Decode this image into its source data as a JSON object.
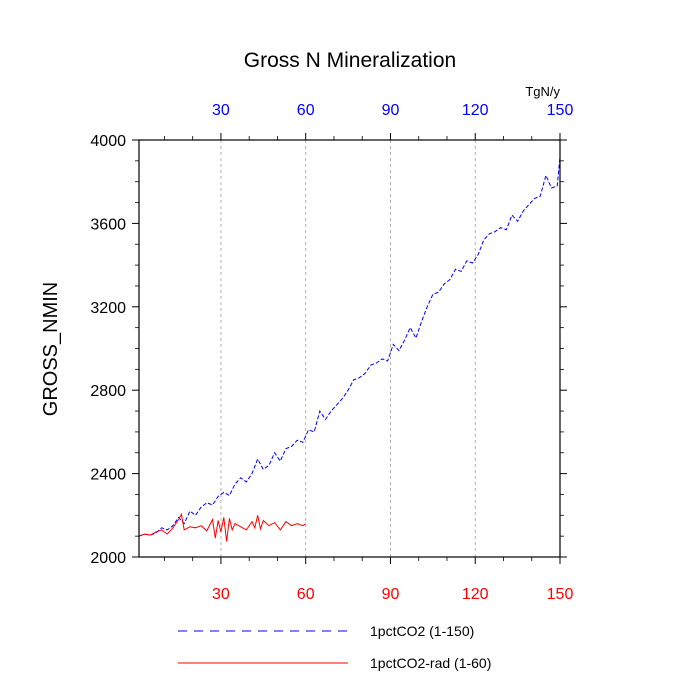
{
  "chart_data": {
    "type": "line",
    "title": "Gross N Mineralization",
    "ylabel": "GROSS_NMIN",
    "units": "TgN/y",
    "xlim": [
      1,
      150
    ],
    "ylim": [
      2000,
      4000
    ],
    "x_ticks": [
      30,
      60,
      90,
      120,
      150
    ],
    "x_tick_labels": [
      "30",
      "60",
      "90",
      "120",
      "150"
    ],
    "y_ticks": [
      2000,
      2400,
      2800,
      3200,
      3600,
      4000
    ],
    "y_tick_labels": [
      "2000",
      "2400",
      "2800",
      "3200",
      "3600",
      "4000"
    ],
    "top_axis_color": "#0000ff",
    "bottom_axis_color": "#ff0000",
    "grid": "vertical dashed at x ticks",
    "legend_position": "bottom",
    "series": [
      {
        "name": "1pctCO2 (1-150)",
        "color": "#0000ff",
        "style": "dashed",
        "x": [
          1,
          3,
          5,
          7,
          9,
          11,
          13,
          15,
          17,
          19,
          21,
          23,
          25,
          27,
          29,
          31,
          33,
          35,
          37,
          39,
          41,
          43,
          45,
          47,
          49,
          51,
          53,
          55,
          57,
          59,
          61,
          63,
          65,
          67,
          69,
          71,
          73,
          75,
          77,
          79,
          81,
          83,
          85,
          87,
          89,
          91,
          93,
          95,
          97,
          99,
          101,
          103,
          105,
          107,
          109,
          111,
          113,
          115,
          117,
          119,
          121,
          123,
          125,
          127,
          129,
          131,
          133,
          135,
          137,
          139,
          141,
          143,
          145,
          147,
          149,
          150
        ],
        "values": [
          2100,
          2110,
          2105,
          2115,
          2140,
          2130,
          2150,
          2190,
          2160,
          2220,
          2200,
          2240,
          2260,
          2250,
          2290,
          2310,
          2295,
          2350,
          2380,
          2360,
          2400,
          2470,
          2420,
          2440,
          2500,
          2460,
          2520,
          2530,
          2560,
          2550,
          2610,
          2600,
          2700,
          2660,
          2700,
          2730,
          2760,
          2800,
          2850,
          2860,
          2880,
          2920,
          2930,
          2950,
          2940,
          3020,
          2990,
          3040,
          3100,
          3050,
          3130,
          3200,
          3260,
          3270,
          3310,
          3330,
          3380,
          3370,
          3420,
          3410,
          3450,
          3520,
          3550,
          3560,
          3580,
          3570,
          3640,
          3610,
          3660,
          3690,
          3720,
          3730,
          3830,
          3770,
          3780,
          3920
        ]
      },
      {
        "name": "1pctCO2-rad (1-60)",
        "color": "#ff0000",
        "style": "solid",
        "x": [
          1,
          3,
          5,
          7,
          9,
          11,
          13,
          15,
          16,
          17,
          19,
          21,
          23,
          25,
          27,
          28,
          29,
          30,
          31,
          32,
          33,
          34,
          35,
          37,
          39,
          41,
          42,
          43,
          44,
          45,
          47,
          49,
          51,
          53,
          55,
          57,
          59,
          60
        ],
        "values": [
          2100,
          2110,
          2105,
          2120,
          2130,
          2110,
          2140,
          2180,
          2205,
          2130,
          2145,
          2140,
          2150,
          2125,
          2180,
          2090,
          2175,
          2120,
          2190,
          2075,
          2185,
          2130,
          2160,
          2145,
          2130,
          2170,
          2140,
          2200,
          2135,
          2175,
          2150,
          2165,
          2130,
          2170,
          2150,
          2160,
          2150,
          2160
        ]
      }
    ]
  }
}
